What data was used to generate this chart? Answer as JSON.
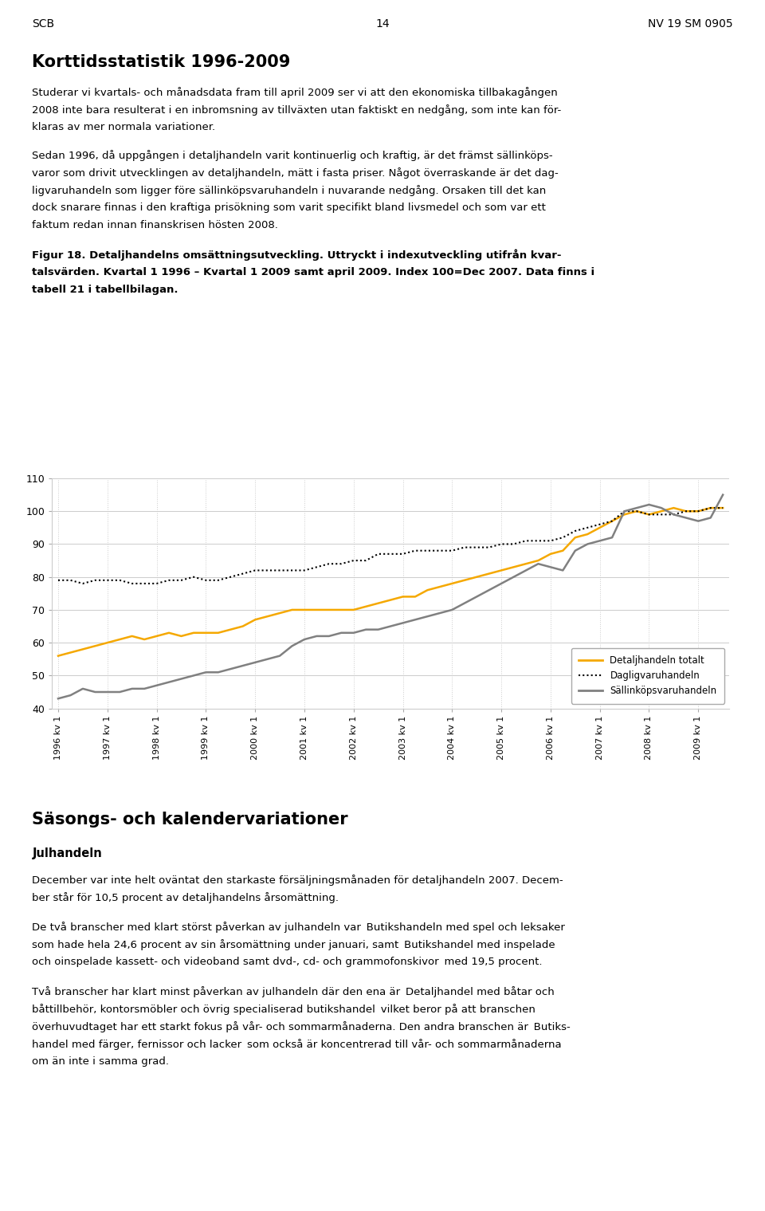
{
  "header_left": "SCB",
  "header_center": "14",
  "header_right": "NV 19 SM 0905",
  "section_title": "Korttidsstatistik 1996-2009",
  "para1_lines": [
    "Studerar vi kvartals- och månadsdata fram till april 2009 ser vi att den ekonomiska tillbakagången",
    "2008 inte bara resulterat i en inbromsning av tillväxten utan faktiskt en nedgång, som inte kan för-",
    "klaras av mer normala variationer."
  ],
  "para2_lines": [
    "Sedan 1996, då uppgången i detaljhandeln varit kontinuerlig och kraftig, är det främst sällinköps-",
    "varor som drivit utvecklingen av detaljhandeln, mätt i fasta priser. Något överraskande är det dag-",
    "ligvaruhandeln som ligger före sällinköpsvaruhandeln i nuvarande nedgång. Orsaken till det kan",
    "dock snarare finnas i den kraftiga prisökning som varit specifikt bland livsmedel och som var ett",
    "faktum redan innan finanskrisen hösten 2008."
  ],
  "fig_caption_lines": [
    "Figur 18. Detaljhandelns omsättningsutveckling. Uttryckt i indexutveckling utifrån kvar-",
    "talsvärden. Kvartal 1 1996 – Kvartal 1 2009 samt april 2009. Index 100=Dec 2007. Data finns i",
    "tabell 21 i tabellbilagan."
  ],
  "section2_title": "Säsongs- och kalendervariationer",
  "subsection2": "Julhandeln",
  "para3_lines": [
    "December var inte helt oväntat den starkaste försäljningsmånaden för detaljhandeln 2007. Decem-",
    "ber står för 10,5 procent av detaljhandelns årsomättning."
  ],
  "para4_lines": [
    "De två branscher med klart störst påverkan av julhandeln var  Butikshandeln med spel och leksaker ",
    "som hade hela 24,6 procent av sin årsomättning under januari, samt  Butikshandel med inspelade",
    "och oinspelade kassett- och videoband samt dvd-, cd- och grammofonskivor  med 19,5 procent."
  ],
  "para5_lines": [
    "Två branscher har klart minst påverkan av julhandeln där den ena är  Detaljhandel med båtar och",
    "båttillbehör, kontorsmöbler och övrig specialiserad butikshandel  vilket beror på att branschen",
    "överhuvudtaget har ett starkt fokus på vår- och sommarmånaderna. Den andra branschen är  Butiks-",
    "handel med färger, fernissor och lacker  som också är koncentrerad till vår- och sommarmånaderna",
    "om än inte i samma grad."
  ],
  "ylim": [
    40,
    110
  ],
  "yticks": [
    40,
    50,
    60,
    70,
    80,
    90,
    100,
    110
  ],
  "line_total_color": "#F5A800",
  "line_daily_color": "#000000",
  "line_sallan_color": "#808080",
  "legend_labels": [
    "Detaljhandeln totalt",
    "Dagligvaruhandeln",
    "Sällinköpsvaruhandeln"
  ],
  "x_labels": [
    "1996 kv 1",
    "1997 kv 1",
    "1998 kv 1",
    "1999 kv 1",
    "2000 kv 1",
    "2001 kv 1",
    "2002 kv 1",
    "2003 kv 1",
    "2004 kv 1",
    "2005 kv 1",
    "2006 kv 1",
    "2007 kv 1",
    "2008 kv 1",
    "2009 kv 1"
  ],
  "detaljhandeln_totalt": [
    56,
    57,
    58,
    59,
    60,
    61,
    62,
    61,
    62,
    63,
    62,
    63,
    63,
    63,
    64,
    65,
    67,
    68,
    69,
    70,
    70,
    70,
    70,
    70,
    70,
    71,
    72,
    73,
    74,
    74,
    76,
    77,
    78,
    79,
    80,
    81,
    82,
    83,
    84,
    85,
    87,
    88,
    92,
    93,
    95,
    97,
    99,
    100,
    99,
    100,
    101,
    100,
    100,
    101,
    101
  ],
  "dagligvaruhandeln": [
    79,
    79,
    78,
    79,
    79,
    79,
    78,
    78,
    78,
    79,
    79,
    80,
    79,
    79,
    80,
    81,
    82,
    82,
    82,
    82,
    82,
    83,
    84,
    84,
    85,
    85,
    87,
    87,
    87,
    88,
    88,
    88,
    88,
    89,
    89,
    89,
    90,
    90,
    91,
    91,
    91,
    92,
    94,
    95,
    96,
    97,
    100,
    100,
    99,
    99,
    99,
    100,
    100,
    101,
    101
  ],
  "sallankopsvaruhandeln": [
    43,
    44,
    46,
    45,
    45,
    45,
    46,
    46,
    47,
    48,
    49,
    50,
    51,
    51,
    52,
    53,
    54,
    55,
    56,
    59,
    61,
    62,
    62,
    63,
    63,
    64,
    64,
    65,
    66,
    67,
    68,
    69,
    70,
    72,
    74,
    76,
    78,
    80,
    82,
    84,
    83,
    82,
    88,
    90,
    91,
    92,
    100,
    101,
    102,
    101,
    99,
    98,
    97,
    98,
    105
  ]
}
